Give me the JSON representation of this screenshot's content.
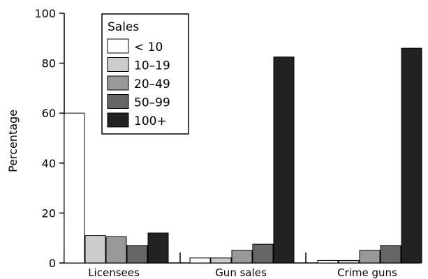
{
  "chart_data": {
    "type": "bar",
    "categories": [
      "Licensees",
      "Gun sales",
      "Crime guns"
    ],
    "series": [
      {
        "name": "< 10",
        "color": "#ffffff",
        "values": [
          60,
          2,
          1
        ]
      },
      {
        "name": "10–19",
        "color": "#cccccc",
        "values": [
          11,
          2,
          1
        ]
      },
      {
        "name": "20–49",
        "color": "#999999",
        "values": [
          10.5,
          5,
          5
        ]
      },
      {
        "name": "50–99",
        "color": "#666666",
        "values": [
          7,
          7.5,
          7
        ]
      },
      {
        "name": "100+",
        "color": "#222222",
        "values": [
          12,
          82.5,
          86
        ]
      }
    ],
    "ylabel": "Percentage",
    "ylim": [
      0,
      100
    ],
    "yticks": [
      "0",
      "20",
      "40",
      "60",
      "80",
      "100"
    ],
    "legend_title": "Sales",
    "legend_position": "top-left",
    "grid": false
  }
}
